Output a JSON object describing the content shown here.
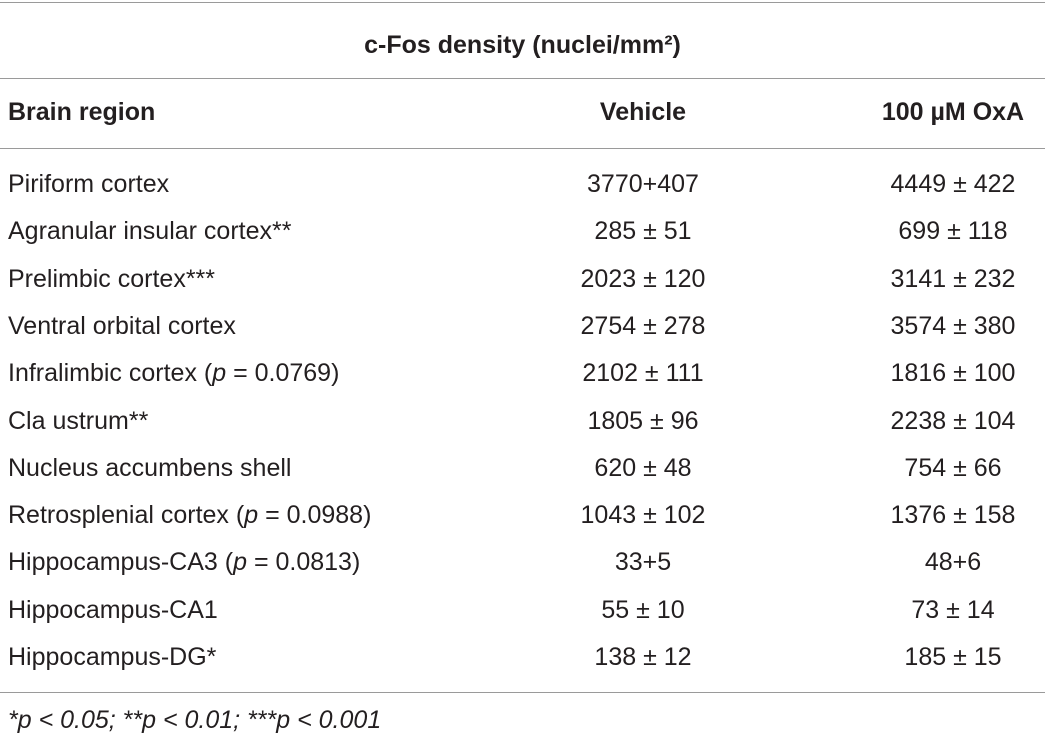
{
  "header": {
    "title": "c-Fos density (nuclei/mm²)"
  },
  "table": {
    "columns": [
      "Brain region",
      "Vehicle",
      "100 µM OxA"
    ],
    "rows": [
      [
        "Piriform cortex",
        "3770+407",
        "4449 ± 422"
      ],
      [
        "Agranular insular cortex**",
        "285 ± 51",
        "699 ± 118"
      ],
      [
        "Prelimbic cortex***",
        "2023 ± 120",
        "3141 ± 232"
      ],
      [
        "Ventral orbital cortex",
        "2754 ± 278",
        "3574 ± 380"
      ],
      [
        [
          "Infralimbic cortex (",
          "p",
          " = 0.0769)"
        ],
        "2102 ± 111",
        "1816 ± 100"
      ],
      [
        "Cla ustrum**",
        "1805 ± 96",
        "2238 ± 104"
      ],
      [
        "Nucleus accumbens shell",
        "620 ± 48",
        "754 ± 66"
      ],
      [
        [
          "Retrosplenial cortex (",
          "p",
          " = 0.0988)"
        ],
        "1043 ± 102",
        "1376 ± 158"
      ],
      [
        [
          "Hippocampus-CA3 (",
          "p",
          " = 0.0813)"
        ],
        "33+5",
        "48+6"
      ],
      [
        "Hippocampus-CA1",
        "55 ± 10",
        "73 ± 14"
      ],
      [
        "Hippocampus-DG*",
        "138 ± 12",
        "185 ± 15"
      ]
    ]
  },
  "footnote": "*p < 0.05; **p < 0.01; ***p < 0.001"
}
